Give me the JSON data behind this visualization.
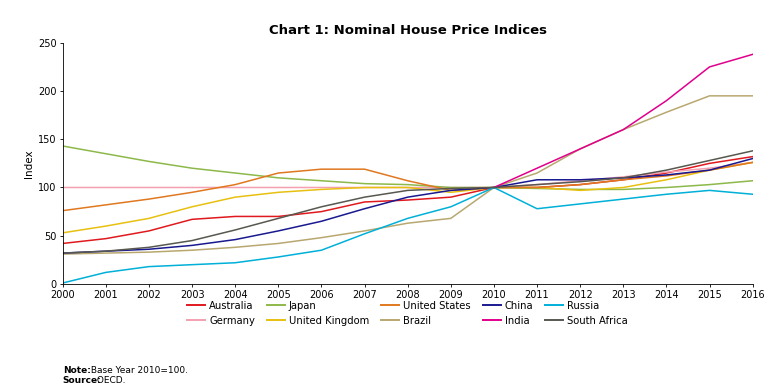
{
  "title": "Chart 1: Nominal House Price Indices",
  "ylabel": "Index",
  "note_bold": "Note:",
  "note_text": " Base Year 2010=100.",
  "source_bold": "Source:",
  "source_text": " OECD.",
  "years": [
    2000,
    2001,
    2002,
    2003,
    2004,
    2005,
    2006,
    2007,
    2008,
    2009,
    2010,
    2011,
    2012,
    2013,
    2014,
    2015,
    2016
  ],
  "series": {
    "Australia": {
      "color": "#e0191e",
      "data": [
        42,
        47,
        55,
        67,
        70,
        70,
        75,
        85,
        87,
        90,
        100,
        100,
        103,
        108,
        115,
        125,
        132
      ]
    },
    "Germany": {
      "color": "#f4a0b0",
      "data": [
        100,
        100,
        100,
        100,
        100,
        100,
        100,
        100,
        100,
        100,
        100,
        103,
        107,
        111,
        116,
        120,
        126
      ]
    },
    "Japan": {
      "color": "#8db84a",
      "data": [
        143,
        135,
        127,
        120,
        115,
        110,
        107,
        104,
        103,
        100,
        100,
        99,
        98,
        98,
        100,
        103,
        107
      ]
    },
    "United Kingdom": {
      "color": "#e8c010",
      "data": [
        53,
        60,
        68,
        80,
        90,
        95,
        98,
        100,
        100,
        95,
        100,
        100,
        97,
        100,
        108,
        118,
        126
      ]
    },
    "United States": {
      "color": "#e07820",
      "data": [
        76,
        82,
        88,
        95,
        103,
        115,
        119,
        119,
        107,
        97,
        100,
        100,
        103,
        108,
        112,
        118,
        126
      ]
    },
    "Brazil": {
      "color": "#b8a870",
      "data": [
        31,
        32,
        33,
        35,
        38,
        42,
        48,
        55,
        63,
        68,
        100,
        115,
        140,
        160,
        178,
        195,
        195
      ]
    },
    "China": {
      "color": "#191990",
      "data": [
        32,
        34,
        36,
        40,
        46,
        55,
        65,
        78,
        90,
        97,
        100,
        108,
        108,
        110,
        113,
        118,
        130
      ]
    },
    "India": {
      "color": "#e0008c",
      "data": [
        null,
        null,
        null,
        null,
        null,
        null,
        null,
        null,
        null,
        null,
        100,
        120,
        140,
        160,
        190,
        225,
        238
      ]
    },
    "Russia": {
      "color": "#00b0d8",
      "data": [
        1,
        12,
        18,
        20,
        22,
        28,
        35,
        52,
        68,
        80,
        100,
        78,
        83,
        88,
        93,
        97,
        93
      ]
    },
    "South Africa": {
      "color": "#585850",
      "data": [
        32,
        34,
        38,
        45,
        56,
        68,
        80,
        90,
        97,
        99,
        100,
        103,
        106,
        110,
        118,
        128,
        138
      ]
    }
  },
  "ylim": [
    0,
    250
  ],
  "yticks": [
    0,
    50,
    100,
    150,
    200,
    250
  ],
  "background_color": "#ffffff",
  "legend_row1": [
    "Australia",
    "Germany",
    "Japan",
    "United Kingdom",
    "United States"
  ],
  "legend_row2": [
    "Brazil",
    "China",
    "India",
    "Russia",
    "South Africa"
  ]
}
